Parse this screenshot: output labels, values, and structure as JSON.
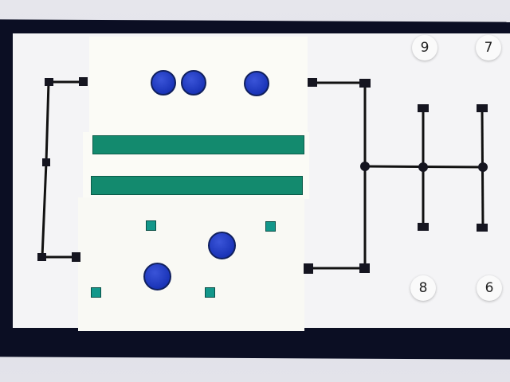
{
  "scene": {
    "description_kind": "photo",
    "colors": {
      "board_frame": "#0b0e23",
      "board_surface": "#f4f4f6",
      "card": "#fbfbf6",
      "bar": "#138a6e",
      "circle": "#1a34b8",
      "square": "#13978a",
      "wire": "#111111"
    }
  },
  "chips": {
    "top_left_label": "9",
    "top_right_label": "7",
    "bottom_left_label": "8",
    "bottom_right_label": "6"
  }
}
